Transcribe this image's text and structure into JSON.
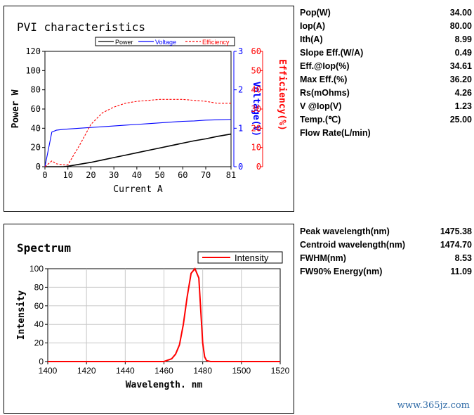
{
  "pvi": {
    "title": "PVI characteristics",
    "chart_data": {
      "type": "line",
      "x": [
        0,
        3,
        5,
        8,
        10,
        15,
        20,
        25,
        30,
        35,
        40,
        45,
        50,
        55,
        60,
        65,
        70,
        75,
        81
      ],
      "xlabel": "Current A",
      "xlim": [
        0,
        81
      ],
      "xticks": [
        0,
        10,
        20,
        30,
        40,
        50,
        60,
        70,
        81
      ],
      "y_left_label": "Power W",
      "y_left_lim": [
        0,
        120
      ],
      "y_left_ticks": [
        0,
        20,
        40,
        60,
        80,
        100,
        120
      ],
      "y_mid_label": "Voltage(V)",
      "y_mid_lim": [
        0,
        3
      ],
      "y_mid_ticks": [
        0,
        1,
        2,
        3
      ],
      "y_right_label": "Efficiency(%)",
      "y_right_lim": [
        0,
        60
      ],
      "y_right_ticks": [
        0,
        10,
        20,
        30,
        40,
        50,
        60
      ],
      "legend_position": "top",
      "series": [
        {
          "name": "Power",
          "axis": "left",
          "color": "#000000",
          "dash": "solid",
          "values": [
            0,
            0,
            0,
            0,
            0.5,
            2.5,
            4.5,
            7,
            9.5,
            12,
            14.5,
            17,
            19.5,
            22,
            24.5,
            27,
            29,
            31.5,
            34
          ]
        },
        {
          "name": "Voltage",
          "axis": "mid",
          "color": "#0000ff",
          "dash": "solid",
          "values": [
            0,
            0.9,
            0.95,
            0.97,
            0.98,
            1.0,
            1.02,
            1.04,
            1.06,
            1.08,
            1.1,
            1.12,
            1.14,
            1.16,
            1.18,
            1.19,
            1.21,
            1.22,
            1.23
          ]
        },
        {
          "name": "Efficiency",
          "axis": "right",
          "color": "#ff0000",
          "dash": "dashed",
          "values": [
            0,
            3,
            1.5,
            1,
            1,
            11,
            22,
            28,
            31,
            33,
            34,
            34.5,
            35,
            35,
            35,
            34.5,
            34,
            33,
            33
          ]
        }
      ]
    },
    "table": [
      {
        "label": "Pop(W)",
        "value": "34.00"
      },
      {
        "label": "Iop(A)",
        "value": "80.00"
      },
      {
        "label": "Ith(A)",
        "value": "8.99"
      },
      {
        "label": "Slope Eff.(W/A)",
        "value": "0.49"
      },
      {
        "label": "Eff.@Iop(%)",
        "value": "34.61"
      },
      {
        "label": "Max Eff.(%)",
        "value": "36.20"
      },
      {
        "label": "Rs(mOhms)",
        "value": "4.26"
      },
      {
        "label": "V @Iop(V)",
        "value": "1.23"
      },
      {
        "label": "Temp.(℃)",
        "value": "25.00"
      },
      {
        "label": "Flow Rate(L/min)",
        "value": ""
      }
    ]
  },
  "spectrum": {
    "title": "Spectrum",
    "chart_data": {
      "type": "line",
      "x": [
        1400,
        1460,
        1464,
        1466,
        1468,
        1470,
        1472,
        1474,
        1476,
        1478,
        1479,
        1480,
        1481,
        1482,
        1484,
        1520
      ],
      "xlabel": "Wavelength. nm",
      "xlim": [
        1400,
        1520
      ],
      "xticks": [
        1400,
        1420,
        1440,
        1460,
        1480,
        1500,
        1520
      ],
      "ylabel": "Intensity",
      "ylim": [
        0,
        100
      ],
      "yticks": [
        0,
        20,
        40,
        60,
        80,
        100
      ],
      "grid": true,
      "legend_position": "top-right",
      "series": [
        {
          "name": "Intensity",
          "color": "#ff0000",
          "values": [
            0,
            0,
            3,
            8,
            18,
            40,
            70,
            95,
            100,
            90,
            55,
            20,
            5,
            1,
            0,
            0
          ]
        }
      ]
    },
    "table": [
      {
        "label": "Peak wavelength(nm)",
        "value": "1475.38"
      },
      {
        "label": "Centroid wavelength(nm)",
        "value": "1474.70"
      },
      {
        "label": "FWHM(nm)",
        "value": "8.53"
      },
      {
        "label": "FW90% Energy(nm)",
        "value": "11.09"
      }
    ]
  },
  "watermark": "www.365jz.com"
}
